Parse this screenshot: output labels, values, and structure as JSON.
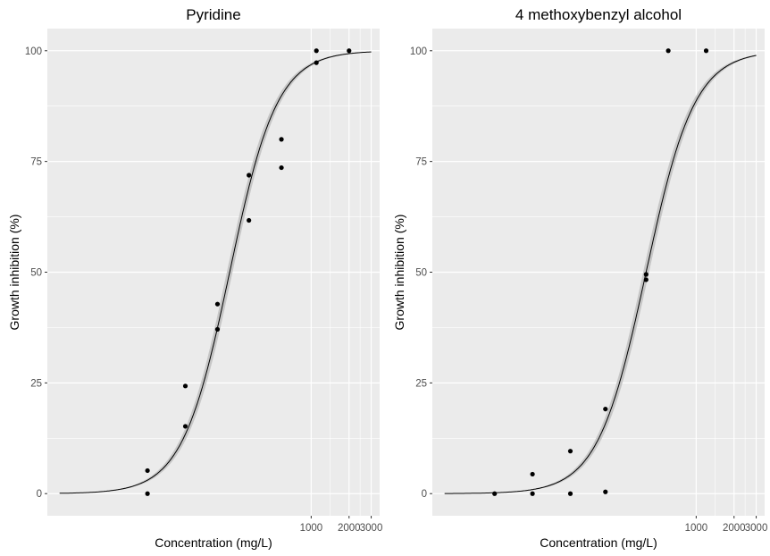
{
  "chart_data": [
    {
      "type": "scatter",
      "title": "Pyridine",
      "xlabel": "Concentration (mg/L)",
      "ylabel": "Growth inhibition (%)",
      "x_scale": "log",
      "xlim": [
        8,
        3500
      ],
      "ylim": [
        -5,
        105
      ],
      "x_ticks": [
        1000,
        2000,
        3000
      ],
      "x_tick_labels": [
        "1000",
        "2000",
        "3000"
      ],
      "y_ticks": [
        0,
        25,
        50,
        75,
        100
      ],
      "y_tick_labels": [
        "0",
        "25",
        "50",
        "75",
        "100"
      ],
      "grid": true,
      "background": "#ebebeb",
      "series": [
        {
          "kind": "points",
          "x": [
            50,
            50,
            100,
            100,
            180,
            180,
            320,
            320,
            580,
            580,
            1100,
            1100,
            2000
          ],
          "y": [
            5.2,
            0,
            24.3,
            15.2,
            42.8,
            37.1,
            71.9,
            61.7,
            80,
            73.6,
            100,
            97.3,
            100
          ]
        },
        {
          "kind": "fit",
          "model": "log-logistic",
          "ec50": 225,
          "hill_slope": 2.3,
          "upper": 100,
          "ci_halfwidth": 3,
          "x_range": [
            10,
            3000
          ],
          "color": "#000000",
          "band_color": "#c6c6c6"
        }
      ]
    },
    {
      "type": "scatter",
      "title": "4 methoxybenzyl alcohol",
      "xlabel": "Concentration (mg/L)",
      "ylabel": "Growth inhibition (%)",
      "x_scale": "log",
      "xlim": [
        8,
        3500
      ],
      "ylim": [
        -5,
        105
      ],
      "x_ticks": [
        1000,
        2000,
        3000
      ],
      "x_tick_labels": [
        "1000",
        "2000",
        "3000"
      ],
      "y_ticks": [
        0,
        25,
        50,
        75,
        100
      ],
      "y_tick_labels": [
        "0",
        "25",
        "50",
        "75",
        "100"
      ],
      "grid": true,
      "background": "#ebebeb",
      "series": [
        {
          "kind": "points",
          "x": [
            25,
            50,
            50,
            100,
            100,
            190,
            190,
            400,
            400,
            600,
            1200
          ],
          "y": [
            0,
            4.4,
            0,
            9.6,
            0,
            19.1,
            0.4,
            49.5,
            48.3,
            100,
            100
          ]
        },
        {
          "kind": "fit",
          "model": "log-logistic",
          "ec50": 400,
          "hill_slope": 2.25,
          "upper": 100,
          "ci_halfwidth": 3,
          "x_range": [
            10,
            3000
          ],
          "color": "#000000",
          "band_color": "#c6c6c6"
        }
      ]
    }
  ]
}
